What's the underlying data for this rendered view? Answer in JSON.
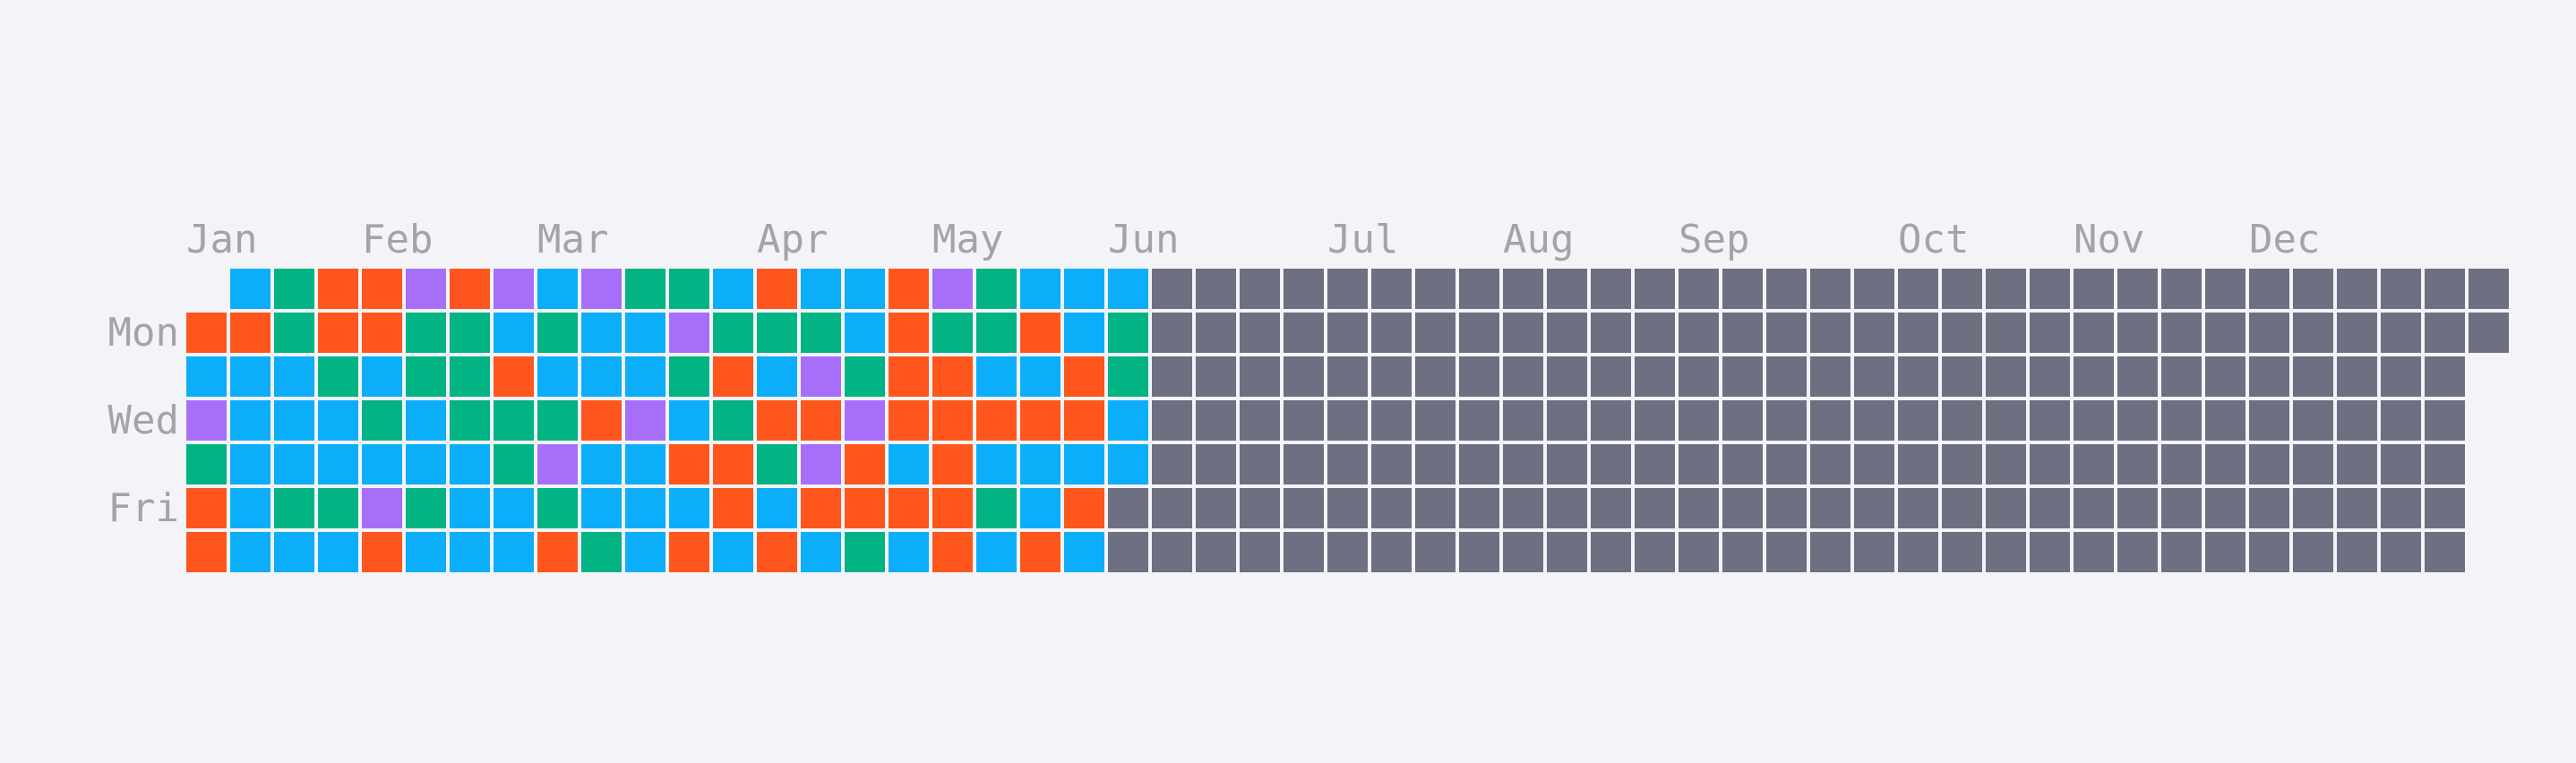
{
  "chart_data": {
    "type": "heatmap",
    "title": "",
    "year_start_weekday": "Sun",
    "month_labels": [
      "Jan",
      "Feb",
      "Mar",
      "Apr",
      "May",
      "Jun",
      "Jul",
      "Aug",
      "Sep",
      "Oct",
      "Nov",
      "Dec"
    ],
    "month_label_weeks": [
      0,
      4,
      8,
      13,
      17,
      21,
      26,
      30,
      34,
      39,
      43,
      47
    ],
    "weekday_labels": [
      "Mon",
      "Wed",
      "Fri"
    ],
    "weekday_label_rows": [
      1,
      3,
      5
    ],
    "palette": {
      "A": "#0daef9",
      "G": "#02b384",
      "O": "#fe561c",
      "P": "#a76ff9",
      "E": "#6c7080"
    },
    "legend_meaning": {
      "E": "empty / no entry"
    },
    "weeks": [
      [
        "-",
        "O",
        "A",
        "P",
        "G",
        "O",
        "O"
      ],
      [
        "A",
        "O",
        "A",
        "A",
        "A",
        "A",
        "A"
      ],
      [
        "G",
        "G",
        "A",
        "A",
        "A",
        "G",
        "A"
      ],
      [
        "O",
        "O",
        "G",
        "A",
        "A",
        "G",
        "A"
      ],
      [
        "O",
        "O",
        "A",
        "G",
        "A",
        "P",
        "O"
      ],
      [
        "P",
        "G",
        "G",
        "A",
        "A",
        "G",
        "A"
      ],
      [
        "O",
        "G",
        "G",
        "G",
        "A",
        "A",
        "A"
      ],
      [
        "P",
        "A",
        "O",
        "G",
        "G",
        "A",
        "A"
      ],
      [
        "A",
        "G",
        "A",
        "G",
        "P",
        "G",
        "O"
      ],
      [
        "P",
        "A",
        "A",
        "O",
        "A",
        "A",
        "G"
      ],
      [
        "G",
        "A",
        "A",
        "P",
        "A",
        "A",
        "A"
      ],
      [
        "G",
        "P",
        "G",
        "A",
        "O",
        "A",
        "O"
      ],
      [
        "A",
        "G",
        "O",
        "G",
        "O",
        "O",
        "A"
      ],
      [
        "O",
        "G",
        "A",
        "O",
        "G",
        "A",
        "O"
      ],
      [
        "A",
        "G",
        "P",
        "O",
        "P",
        "O",
        "A"
      ],
      [
        "A",
        "A",
        "G",
        "P",
        "O",
        "O",
        "G"
      ],
      [
        "O",
        "O",
        "O",
        "O",
        "A",
        "O",
        "A"
      ],
      [
        "P",
        "G",
        "O",
        "O",
        "O",
        "O",
        "O"
      ],
      [
        "G",
        "G",
        "A",
        "O",
        "A",
        "G",
        "A"
      ],
      [
        "A",
        "O",
        "A",
        "O",
        "A",
        "A",
        "O"
      ],
      [
        "A",
        "A",
        "O",
        "O",
        "A",
        "O",
        "A"
      ],
      [
        "A",
        "G",
        "G",
        "A",
        "A",
        "E",
        "E"
      ],
      [
        "E",
        "E",
        "E",
        "E",
        "E",
        "E",
        "E"
      ],
      [
        "E",
        "E",
        "E",
        "E",
        "E",
        "E",
        "E"
      ],
      [
        "E",
        "E",
        "E",
        "E",
        "E",
        "E",
        "E"
      ],
      [
        "E",
        "E",
        "E",
        "E",
        "E",
        "E",
        "E"
      ],
      [
        "E",
        "E",
        "E",
        "E",
        "E",
        "E",
        "E"
      ],
      [
        "E",
        "E",
        "E",
        "E",
        "E",
        "E",
        "E"
      ],
      [
        "E",
        "E",
        "E",
        "E",
        "E",
        "E",
        "E"
      ],
      [
        "E",
        "E",
        "E",
        "E",
        "E",
        "E",
        "E"
      ],
      [
        "E",
        "E",
        "E",
        "E",
        "E",
        "E",
        "E"
      ],
      [
        "E",
        "E",
        "E",
        "E",
        "E",
        "E",
        "E"
      ],
      [
        "E",
        "E",
        "E",
        "E",
        "E",
        "E",
        "E"
      ],
      [
        "E",
        "E",
        "E",
        "E",
        "E",
        "E",
        "E"
      ],
      [
        "E",
        "E",
        "E",
        "E",
        "E",
        "E",
        "E"
      ],
      [
        "E",
        "E",
        "E",
        "E",
        "E",
        "E",
        "E"
      ],
      [
        "E",
        "E",
        "E",
        "E",
        "E",
        "E",
        "E"
      ],
      [
        "E",
        "E",
        "E",
        "E",
        "E",
        "E",
        "E"
      ],
      [
        "E",
        "E",
        "E",
        "E",
        "E",
        "E",
        "E"
      ],
      [
        "E",
        "E",
        "E",
        "E",
        "E",
        "E",
        "E"
      ],
      [
        "E",
        "E",
        "E",
        "E",
        "E",
        "E",
        "E"
      ],
      [
        "E",
        "E",
        "E",
        "E",
        "E",
        "E",
        "E"
      ],
      [
        "E",
        "E",
        "E",
        "E",
        "E",
        "E",
        "E"
      ],
      [
        "E",
        "E",
        "E",
        "E",
        "E",
        "E",
        "E"
      ],
      [
        "E",
        "E",
        "E",
        "E",
        "E",
        "E",
        "E"
      ],
      [
        "E",
        "E",
        "E",
        "E",
        "E",
        "E",
        "E"
      ],
      [
        "E",
        "E",
        "E",
        "E",
        "E",
        "E",
        "E"
      ],
      [
        "E",
        "E",
        "E",
        "E",
        "E",
        "E",
        "E"
      ],
      [
        "E",
        "E",
        "E",
        "E",
        "E",
        "E",
        "E"
      ],
      [
        "E",
        "E",
        "E",
        "E",
        "E",
        "E",
        "E"
      ],
      [
        "E",
        "E",
        "E",
        "E",
        "E",
        "E",
        "E"
      ],
      [
        "E",
        "E",
        "E",
        "E",
        "E",
        "E",
        "E"
      ],
      [
        "E",
        "E",
        "-",
        "-",
        "-",
        "-",
        "-"
      ]
    ]
  }
}
